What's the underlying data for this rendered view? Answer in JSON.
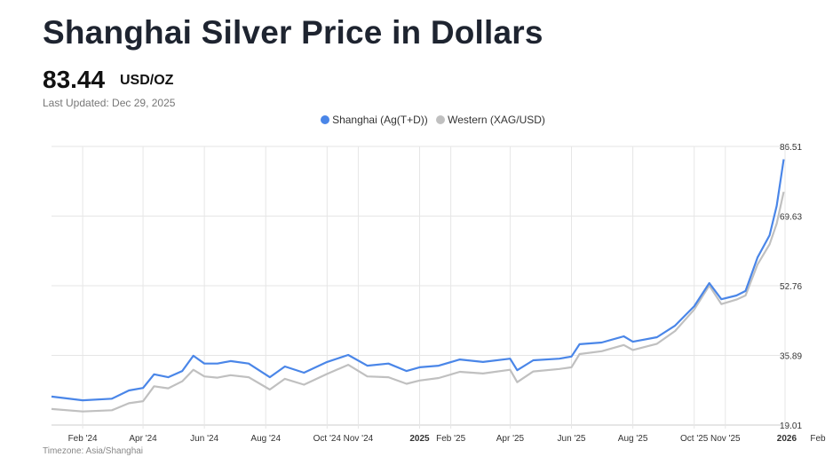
{
  "header": {
    "title": "Shanghai Silver Price in Dollars",
    "price": "83.44",
    "unit": "USD/OZ",
    "last_updated": "Last Updated: Dec 29, 2025"
  },
  "footer": {
    "timezone": "Timezone: Asia/Shanghai"
  },
  "colors": {
    "shanghai": "#4a86e8",
    "western": "#c0c0c0",
    "grid": "#e6e6e6"
  },
  "chart_data": {
    "type": "line",
    "title": "Shanghai Silver Price in Dollars",
    "xlabel": "",
    "ylabel": "USD/OZ",
    "xlim": [
      "2024-01-01",
      "2026-02-01"
    ],
    "ylim": [
      19.01,
      86.51
    ],
    "y_ticks": [
      "86.51",
      "69.63",
      "52.76",
      "35.89",
      "19.01"
    ],
    "x_ticks": [
      {
        "date": "2024-02-01",
        "label": "Feb '24"
      },
      {
        "date": "2024-04-01",
        "label": "Apr '24"
      },
      {
        "date": "2024-06-01",
        "label": "Jun '24"
      },
      {
        "date": "2024-08-01",
        "label": "Aug '24"
      },
      {
        "date": "2024-10-01",
        "label": "Oct '24"
      },
      {
        "date": "2024-11-01",
        "label": "Nov '24"
      },
      {
        "date": "2025-01-01",
        "label": "2025",
        "bold": true
      },
      {
        "date": "2025-02-01",
        "label": "Feb '25"
      },
      {
        "date": "2025-04-01",
        "label": "Apr '25"
      },
      {
        "date": "2025-06-01",
        "label": "Jun '25"
      },
      {
        "date": "2025-08-01",
        "label": "Aug '25"
      },
      {
        "date": "2025-10-01",
        "label": "Oct '25"
      },
      {
        "date": "2025-11-01",
        "label": "Nov '25"
      },
      {
        "date": "2026-01-01",
        "label": "2026",
        "bold": true
      },
      {
        "date": "2026-02-01",
        "label": "Feb"
      }
    ],
    "legend": [
      "Shanghai (Ag(T+D))",
      "Western (XAG/USD)"
    ],
    "legend_position": "top-center",
    "x": [
      "2024-01-01",
      "2024-02-01",
      "2024-03-01",
      "2024-03-18",
      "2024-04-01",
      "2024-04-12",
      "2024-04-26",
      "2024-05-10",
      "2024-05-21",
      "2024-06-01",
      "2024-06-14",
      "2024-06-27",
      "2024-07-15",
      "2024-08-05",
      "2024-08-20",
      "2024-09-08",
      "2024-10-01",
      "2024-10-22",
      "2024-11-10",
      "2024-12-01",
      "2024-12-19",
      "2025-01-01",
      "2025-01-20",
      "2025-02-10",
      "2025-03-05",
      "2025-04-01",
      "2025-04-08",
      "2025-04-24",
      "2025-05-20",
      "2025-06-01",
      "2025-06-09",
      "2025-07-01",
      "2025-07-23",
      "2025-08-01",
      "2025-08-25",
      "2025-09-12",
      "2025-10-01",
      "2025-10-16",
      "2025-10-28",
      "2025-11-12",
      "2025-11-21",
      "2025-12-03",
      "2025-12-15",
      "2025-12-22",
      "2025-12-29"
    ],
    "series": [
      {
        "name": "Shanghai (Ag(T+D))",
        "values": [
          25.9,
          25.0,
          25.4,
          27.4,
          28.0,
          31.3,
          30.6,
          32.1,
          35.8,
          33.9,
          33.9,
          34.5,
          33.9,
          30.6,
          33.2,
          31.7,
          34.3,
          36.0,
          33.4,
          33.9,
          32.1,
          33.0,
          33.4,
          34.9,
          34.3,
          35.1,
          32.3,
          34.7,
          35.1,
          35.6,
          38.6,
          39.0,
          40.5,
          39.2,
          40.3,
          43.1,
          47.8,
          53.4,
          49.5,
          50.4,
          51.5,
          59.6,
          65.0,
          72.1,
          83.4
        ]
      },
      {
        "name": "Western (XAG/USD)",
        "values": [
          22.9,
          22.3,
          22.6,
          24.3,
          24.8,
          28.4,
          27.9,
          29.6,
          32.4,
          30.8,
          30.5,
          31.1,
          30.6,
          27.6,
          30.2,
          28.8,
          31.4,
          33.6,
          30.8,
          30.6,
          29.0,
          29.8,
          30.4,
          31.9,
          31.5,
          32.4,
          29.4,
          32.0,
          32.6,
          33.0,
          36.2,
          36.9,
          38.4,
          37.2,
          38.7,
          41.8,
          47.0,
          52.8,
          48.3,
          49.4,
          50.4,
          57.9,
          62.8,
          67.8,
          75.5
        ]
      }
    ]
  }
}
